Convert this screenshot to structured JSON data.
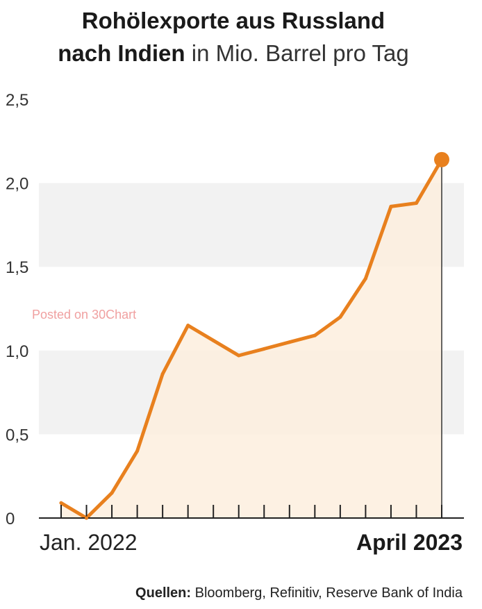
{
  "title": {
    "line1": "Rohölexporte aus Russland",
    "line2_bold": "nach Indien",
    "line2_light": "in Mio. Barrel pro Tag"
  },
  "watermark": "Posted on 30Chart",
  "source": {
    "label": "Quellen:",
    "text": "Bloomberg, Refinitiv, Reserve Bank of India"
  },
  "colors": {
    "line": "#e8801e",
    "fill": "#fdeede",
    "band": "#f2f2f2"
  },
  "chart_data": {
    "type": "area",
    "title": "Rohölexporte aus Russland nach Indien in Mio. Barrel pro Tag",
    "xlabel": "",
    "ylabel": "",
    "x_start_label": "Jan. 2022",
    "x_end_label": "April 2023",
    "x": [
      "Jan 2022",
      "Feb 2022",
      "Mar 2022",
      "Apr 2022",
      "May 2022",
      "Jun 2022",
      "Jul 2022",
      "Aug 2022",
      "Sep 2022",
      "Oct 2022",
      "Nov 2022",
      "Dec 2022",
      "Jan 2023",
      "Feb 2023",
      "Mar 2023",
      "Apr 2023"
    ],
    "values": [
      0.09,
      0.0,
      0.15,
      0.4,
      0.86,
      1.15,
      1.06,
      0.97,
      1.01,
      1.05,
      1.09,
      1.2,
      1.43,
      1.86,
      1.88,
      2.14
    ],
    "ylim": [
      0,
      2.5
    ],
    "yticks": [
      "0",
      "0,5",
      "1,0",
      "1,5",
      "2,0",
      "2,5"
    ],
    "ytick_values": [
      0,
      0.5,
      1.0,
      1.5,
      2.0,
      2.5
    ],
    "highlight_last_point": true,
    "grid": "alternating horizontal bands"
  }
}
